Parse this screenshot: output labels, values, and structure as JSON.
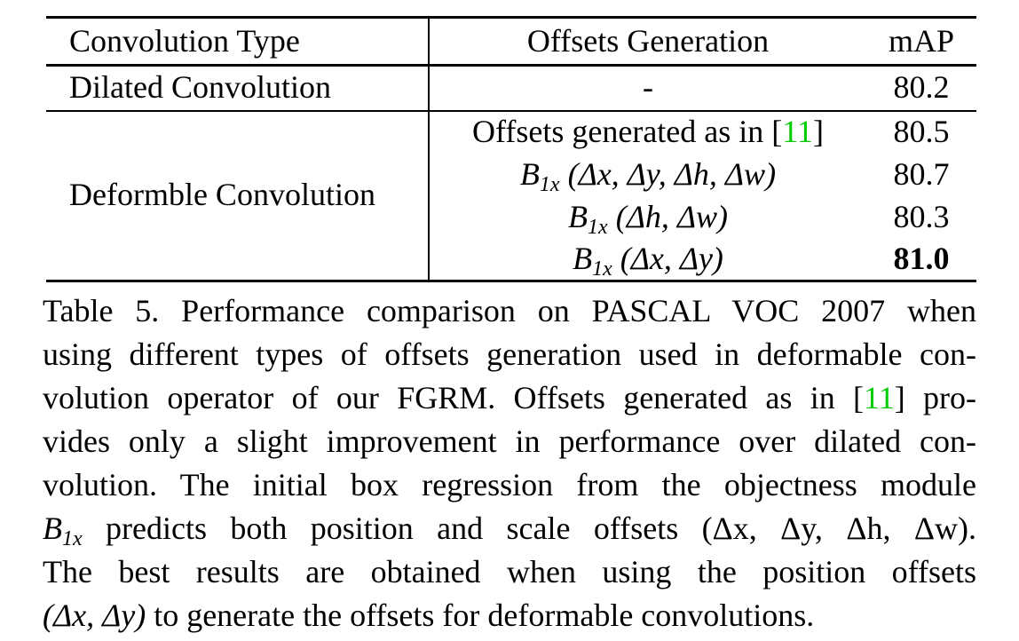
{
  "table": {
    "headers": {
      "col1": "Convolution Type",
      "col2": "Offsets Generation",
      "col3": "mAP"
    },
    "rows": [
      {
        "type": "Dilated Convolution",
        "offsets": "-",
        "map": "80.2"
      },
      {
        "type": "Deformble Convolution",
        "offsets": "Offsets generated as in [11]",
        "map": "80.5"
      },
      {
        "type": "",
        "offsets": "B1x (Δx, Δy, Δh, Δw)",
        "map": "80.7"
      },
      {
        "type": "",
        "offsets": "B1x (Δh, Δw)",
        "map": "80.3"
      },
      {
        "type": "",
        "offsets": "B1x (Δx, Δy)",
        "map": "81.0"
      }
    ],
    "ref_label": "11",
    "offsets_prefix": "Offsets generated as in [",
    "offsets_suffix": "]",
    "b_symbol": "B",
    "b_sub": "1x",
    "args_full": "(Δx, Δy, Δh, Δw)",
    "args_scale": "(Δh, Δw)",
    "args_pos": "(Δx, Δy)"
  },
  "caption": {
    "line1": "Table 5. Performance comparison on PASCAL VOC 2007 when",
    "line2": "using different types of offsets generation used in deformable con-",
    "line3_pre": "volution operator of our FGRM. Offsets generated as in [",
    "line3_ref": "11",
    "line3_post": "] pro-",
    "line4": "vides only a slight improvement in performance over dilated con-",
    "line5": "volution.  The initial box regression from the objectness module",
    "line6_b": "B",
    "line6_sub": "1x",
    "line6_post": " predicts both position and scale offsets (Δx, Δy, Δh, Δw).",
    "line7": "The best results are obtained when using the position offsets",
    "line8_args": "(Δx, Δy)",
    "line8_post": " to generate the offsets for deformable convolutions."
  }
}
